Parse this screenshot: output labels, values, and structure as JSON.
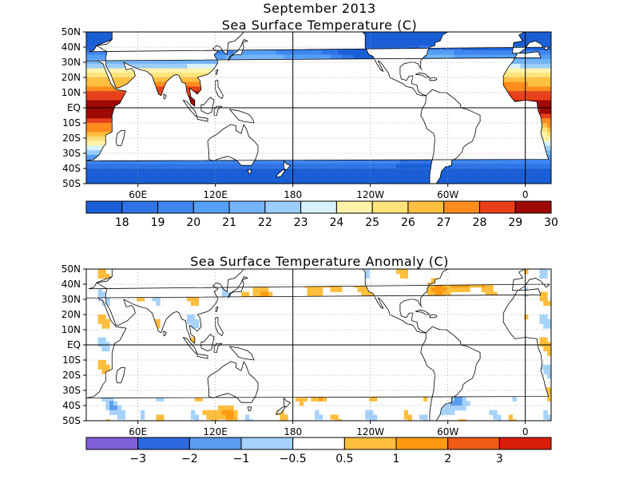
{
  "chart_data": [
    {
      "type": "heatmap",
      "title": "September 2013",
      "subtitle": "Sea Surface Temperature (C)",
      "lat_ticks": [
        "50N",
        "40N",
        "30N",
        "20N",
        "10N",
        "EQ",
        "10S",
        "20S",
        "30S",
        "40S",
        "50S"
      ],
      "lon_ticks": [
        "60E",
        "120E",
        "180",
        "120W",
        "60W",
        "0"
      ],
      "lat_range": [
        -50,
        50
      ],
      "lon_range": [
        20,
        380
      ],
      "colorbar": {
        "labels": [
          "18",
          "19",
          "20",
          "21",
          "22",
          "23",
          "24",
          "25",
          "26",
          "27",
          "28",
          "29",
          "30"
        ],
        "colors": [
          "#1a5fd6",
          "#2f74e6",
          "#3f86ef",
          "#559ff5",
          "#73b5f8",
          "#9ccdfb",
          "#d7f2fb",
          "#fff3a8",
          "#ffe27a",
          "#ffc042",
          "#ff8d1e",
          "#e8401a",
          "#9e0a05"
        ]
      }
    },
    {
      "type": "heatmap",
      "title": "Sea Surface Temperature Anomaly (C)",
      "lat_ticks": [
        "50N",
        "40N",
        "30N",
        "20N",
        "10N",
        "EQ",
        "10S",
        "20S",
        "30S",
        "40S",
        "50S"
      ],
      "lon_ticks": [
        "60E",
        "120E",
        "180",
        "120W",
        "60W",
        "0"
      ],
      "lat_range": [
        -50,
        50
      ],
      "lon_range": [
        20,
        380
      ],
      "colorbar": {
        "labels": [
          "−3",
          "−2",
          "−1",
          "−0.5",
          "0.5",
          "1",
          "2",
          "3"
        ],
        "colors": [
          "#8060d8",
          "#2c68e0",
          "#5a9cf0",
          "#a6d2fb",
          "#ffffff",
          "#ffbe3c",
          "#ff9a12",
          "#ef5a16",
          "#d81e0a"
        ]
      }
    }
  ]
}
